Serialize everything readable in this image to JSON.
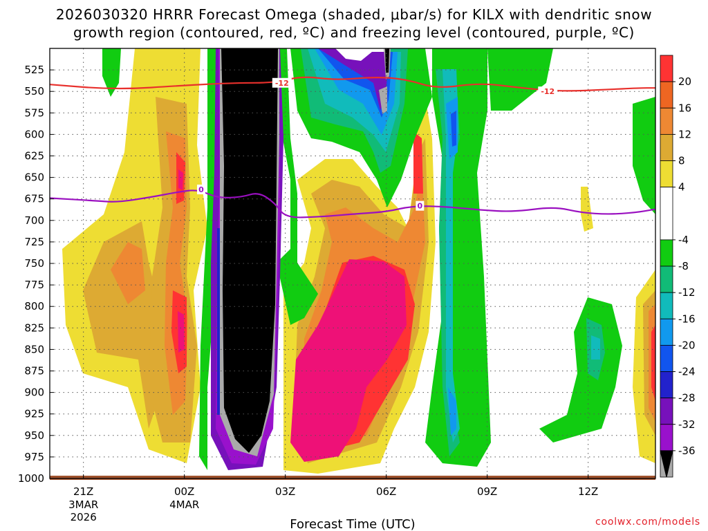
{
  "chart_data": {
    "type": "heatmap",
    "title_line1": "2026030320 HRRR Forecast Omega (shaded, μbar/s) for KILX with dendritic snow",
    "title_line2": "growth region (contoured, red, ºC) and freezing level (contoured, purple, ºC)",
    "xlabel": "Forecast Time (UTC)",
    "credit": "coolwx.com/models",
    "x_ticks": [
      {
        "label": "21Z",
        "sub": [
          "3MAR",
          "2026"
        ],
        "hour": 1
      },
      {
        "label": "00Z",
        "sub": [
          "4MAR"
        ],
        "hour": 4
      },
      {
        "label": "03Z",
        "sub": [],
        "hour": 7
      },
      {
        "label": "06Z",
        "sub": [],
        "hour": 10
      },
      {
        "label": "09Z",
        "sub": [],
        "hour": 13
      },
      {
        "label": "12Z",
        "sub": [],
        "hour": 16
      }
    ],
    "xlim": [
      0,
      18
    ],
    "y_ticks": [
      525,
      550,
      575,
      600,
      625,
      650,
      675,
      700,
      725,
      750,
      775,
      800,
      825,
      850,
      875,
      900,
      925,
      950,
      975,
      1000
    ],
    "ylim": [
      500,
      1000
    ],
    "grid": true,
    "colorbar": {
      "labels": [
        20,
        16,
        12,
        8,
        4,
        -4,
        -8,
        -12,
        -16,
        -20,
        -24,
        -28,
        -32,
        -36
      ],
      "levels": [
        24,
        20,
        16,
        12,
        8,
        4,
        -4,
        -8,
        -12,
        -16,
        -20,
        -24,
        -28,
        -32,
        -36,
        -40
      ],
      "colors": [
        "#ee1177",
        "#ff3333",
        "#ee6622",
        "#ee8833",
        "#ddaa33",
        "#eedd33",
        "#ffffff",
        "#11cc11",
        "#11bb77",
        "#11bbbb",
        "#1199ee",
        "#1155ee",
        "#2222cc",
        "#7711bb",
        "#9911cc",
        "#aaaaaa",
        "#000000"
      ]
    },
    "contours": [
      {
        "name": "-12",
        "color": "#e8302c",
        "label": "-12",
        "x": [
          0,
          2,
          4,
          5.5,
          6.7,
          7.5,
          8.5,
          9.7,
          10.6,
          11.5,
          12.8,
          14,
          15.2,
          16.5,
          17.5,
          18
        ],
        "y": [
          542,
          548,
          543,
          540,
          540,
          532,
          537,
          533,
          536,
          547,
          540,
          546,
          550,
          548,
          546,
          546
        ],
        "label_at": [
          6.9,
          14.8
        ]
      },
      {
        "name": "0",
        "color": "#9a10c0",
        "label": "0",
        "x": [
          0,
          1.3,
          2,
          3,
          3.8,
          4.4,
          5.0,
          5.7,
          6.2,
          6.7,
          7.0,
          8.0,
          9.2,
          10.0,
          10.8,
          11.8,
          12.8,
          13.8,
          15.0,
          15.8,
          16.6,
          17.4,
          18
        ],
        "y": [
          674,
          677,
          679,
          673,
          667,
          664,
          674,
          673,
          667,
          680,
          697,
          696,
          692,
          690,
          683,
          684,
          688,
          690,
          684,
          691,
          693,
          691,
          687
        ],
        "label_at": [
          4.5,
          11.0
        ]
      }
    ]
  }
}
